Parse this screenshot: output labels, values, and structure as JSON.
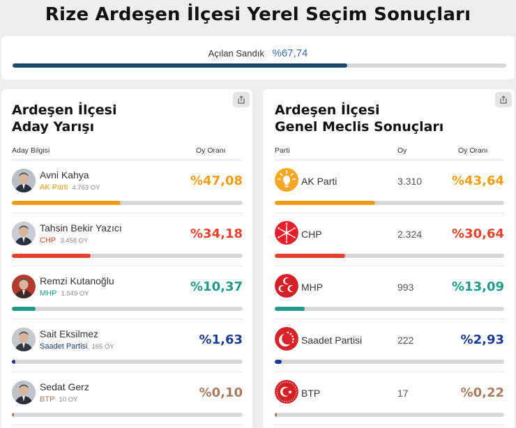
{
  "page": {
    "title": "Rize Ardeşen İlçesi Yerel Seçim Sonuçları"
  },
  "ballot_progress": {
    "label": "Açılan Sandık",
    "value": "%67,74",
    "fraction": 0.6774
  },
  "candidates_panel": {
    "title_line1": "Ardeşen İlçesi",
    "title_line2": "Aday Yarışı",
    "share_icon": "share-icon",
    "headers": {
      "info": "Aday Bilgisi",
      "rate": "Oy Oranı"
    },
    "rows": [
      {
        "name": "Avni Kahya",
        "party": "AK Parti",
        "votes": "4.763 OY",
        "percent": "%47,08",
        "share": 0.4708,
        "color": "#f39c12"
      },
      {
        "name": "Tahsin Bekir Yazıcı",
        "party": "CHP",
        "votes": "3.458 OY",
        "percent": "%34,18",
        "share": 0.3418,
        "color": "#e8412c"
      },
      {
        "name": "Remzi Kutanoğlu",
        "party": "MHP",
        "votes": "1.049 OY",
        "percent": "%10,37",
        "share": 0.1037,
        "color": "#1e9b86"
      },
      {
        "name": "Sait Eksilmez",
        "party": "Saadet Partisi",
        "votes": "165 OY",
        "percent": "%1,63",
        "share": 0.0163,
        "color": "#1b3b94"
      },
      {
        "name": "Sedat Gerz",
        "party": "BTP",
        "votes": "10 OY",
        "percent": "%0,10",
        "share": 0.001,
        "color": "#a97b5f"
      }
    ]
  },
  "council_panel": {
    "title_line1": "Ardeşen İlçesi",
    "title_line2": "Genel Meclis Sonuçları",
    "share_icon": "share-icon",
    "headers": {
      "party": "Parti",
      "votes": "Oy",
      "rate": "Oy Oranı"
    },
    "rows": [
      {
        "party": "AK Parti",
        "votes": "3.310",
        "percent": "%43,64",
        "share": 0.4364,
        "color": "#f39c12",
        "logo": "akp-bulb-icon"
      },
      {
        "party": "CHP",
        "votes": "2.324",
        "percent": "%30,64",
        "share": 0.3064,
        "color": "#e8412c",
        "logo": "chp-six-arrows-icon"
      },
      {
        "party": "MHP",
        "votes": "993",
        "percent": "%13,09",
        "share": 0.1309,
        "color": "#1e9b86",
        "logo": "mhp-crescents-icon"
      },
      {
        "party": "Saadet Partisi",
        "votes": "222",
        "percent": "%2,93",
        "share": 0.0293,
        "color": "#1b3b94",
        "logo": "saadet-crescent-icon"
      },
      {
        "party": "BTP",
        "votes": "17",
        "percent": "%0,22",
        "share": 0.0022,
        "color": "#a97b5f",
        "logo": "btp-crescent-star-icon"
      }
    ]
  }
}
